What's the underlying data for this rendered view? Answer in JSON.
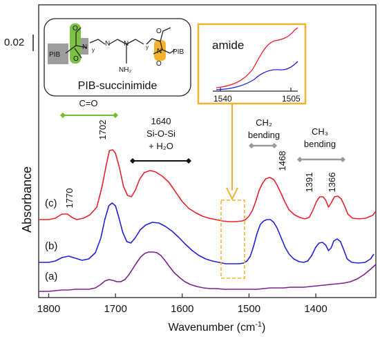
{
  "chart_data": {
    "type": "line",
    "xlabel": "Wavenumber (cm",
    "xlabel_sup": "-1",
    "xlabel_tail": ")",
    "ylabel": "Absorbance",
    "scale_bar": "0.02",
    "x_reversed": true,
    "xlim": [
      1815,
      1310
    ],
    "x_ticks": [
      1800,
      1700,
      1600,
      1500,
      1400
    ],
    "grid": false,
    "series": [
      {
        "name": "(c)",
        "color": "#e8202a",
        "points": [
          [
            1815,
            318
          ],
          [
            1800,
            318
          ],
          [
            1790,
            316
          ],
          [
            1780,
            310
          ],
          [
            1772,
            310
          ],
          [
            1765,
            315
          ],
          [
            1758,
            318
          ],
          [
            1748,
            316
          ],
          [
            1738,
            311
          ],
          [
            1728,
            300
          ],
          [
            1720,
            270
          ],
          [
            1714,
            240
          ],
          [
            1709,
            218
          ],
          [
            1704,
            217
          ],
          [
            1700,
            222
          ],
          [
            1694,
            243
          ],
          [
            1688,
            270
          ],
          [
            1682,
            283
          ],
          [
            1676,
            285
          ],
          [
            1670,
            275
          ],
          [
            1664,
            260
          ],
          [
            1657,
            250
          ],
          [
            1648,
            247
          ],
          [
            1640,
            249
          ],
          [
            1630,
            255
          ],
          [
            1620,
            264
          ],
          [
            1610,
            278
          ],
          [
            1600,
            292
          ],
          [
            1590,
            302
          ],
          [
            1580,
            308
          ],
          [
            1570,
            313
          ],
          [
            1560,
            316
          ],
          [
            1550,
            318
          ],
          [
            1540,
            320
          ],
          [
            1530,
            321
          ],
          [
            1520,
            321
          ],
          [
            1510,
            320
          ],
          [
            1505,
            318
          ],
          [
            1500,
            313
          ],
          [
            1495,
            305
          ],
          [
            1490,
            292
          ],
          [
            1485,
            276
          ],
          [
            1480,
            266
          ],
          [
            1475,
            259
          ],
          [
            1469,
            257
          ],
          [
            1463,
            260
          ],
          [
            1458,
            268
          ],
          [
            1452,
            280
          ],
          [
            1446,
            293
          ],
          [
            1440,
            304
          ],
          [
            1432,
            311
          ],
          [
            1424,
            315
          ],
          [
            1416,
            317
          ],
          [
            1410,
            315
          ],
          [
            1405,
            306
          ],
          [
            1399,
            292
          ],
          [
            1394,
            285
          ],
          [
            1389,
            285
          ],
          [
            1385,
            290
          ],
          [
            1381,
            300
          ],
          [
            1377,
            294
          ],
          [
            1372,
            285
          ],
          [
            1367,
            284
          ],
          [
            1362,
            288
          ],
          [
            1357,
            298
          ],
          [
            1352,
            310
          ],
          [
            1345,
            316
          ],
          [
            1335,
            317
          ],
          [
            1325,
            316
          ],
          [
            1315,
            312
          ],
          [
            1310,
            306
          ]
        ]
      },
      {
        "name": "(b)",
        "color": "#1f1fd8",
        "points": [
          [
            1815,
            380
          ],
          [
            1800,
            380
          ],
          [
            1790,
            378
          ],
          [
            1780,
            373
          ],
          [
            1770,
            371
          ],
          [
            1760,
            374
          ],
          [
            1750,
            377
          ],
          [
            1740,
            375
          ],
          [
            1730,
            366
          ],
          [
            1722,
            345
          ],
          [
            1716,
            318
          ],
          [
            1710,
            298
          ],
          [
            1705,
            294
          ],
          [
            1700,
            298
          ],
          [
            1695,
            315
          ],
          [
            1689,
            337
          ],
          [
            1683,
            350
          ],
          [
            1677,
            352
          ],
          [
            1670,
            344
          ],
          [
            1663,
            333
          ],
          [
            1655,
            326
          ],
          [
            1645,
            322
          ],
          [
            1635,
            323
          ],
          [
            1625,
            328
          ],
          [
            1615,
            335
          ],
          [
            1605,
            344
          ],
          [
            1595,
            354
          ],
          [
            1585,
            363
          ],
          [
            1575,
            370
          ],
          [
            1565,
            375
          ],
          [
            1555,
            378
          ],
          [
            1545,
            380
          ],
          [
            1535,
            382
          ],
          [
            1525,
            382
          ],
          [
            1515,
            382
          ],
          [
            1508,
            381
          ],
          [
            1503,
            378
          ],
          [
            1498,
            371
          ],
          [
            1493,
            356
          ],
          [
            1488,
            338
          ],
          [
            1483,
            325
          ],
          [
            1478,
            320
          ],
          [
            1473,
            318
          ],
          [
            1468,
            318
          ],
          [
            1463,
            322
          ],
          [
            1458,
            330
          ],
          [
            1452,
            344
          ],
          [
            1446,
            358
          ],
          [
            1440,
            368
          ],
          [
            1433,
            375
          ],
          [
            1425,
            379
          ],
          [
            1418,
            380
          ],
          [
            1412,
            378
          ],
          [
            1406,
            370
          ],
          [
            1400,
            358
          ],
          [
            1395,
            352
          ],
          [
            1390,
            351
          ],
          [
            1385,
            355
          ],
          [
            1381,
            363
          ],
          [
            1377,
            359
          ],
          [
            1373,
            349
          ],
          [
            1368,
            346
          ],
          [
            1363,
            350
          ],
          [
            1358,
            362
          ],
          [
            1353,
            375
          ],
          [
            1346,
            380
          ],
          [
            1336,
            381
          ],
          [
            1326,
            380
          ],
          [
            1318,
            375
          ],
          [
            1313,
            368
          ]
        ]
      },
      {
        "name": "(a)",
        "color": "#7a1f8c",
        "points": [
          [
            1815,
            422
          ],
          [
            1800,
            422
          ],
          [
            1790,
            421
          ],
          [
            1780,
            420
          ],
          [
            1770,
            420
          ],
          [
            1760,
            419
          ],
          [
            1750,
            419
          ],
          [
            1740,
            419
          ],
          [
            1730,
            417
          ],
          [
            1722,
            412
          ],
          [
            1716,
            407
          ],
          [
            1710,
            405
          ],
          [
            1704,
            406
          ],
          [
            1698,
            408
          ],
          [
            1692,
            408
          ],
          [
            1686,
            405
          ],
          [
            1680,
            398
          ],
          [
            1674,
            389
          ],
          [
            1668,
            380
          ],
          [
            1662,
            372
          ],
          [
            1656,
            367
          ],
          [
            1650,
            365
          ],
          [
            1644,
            365
          ],
          [
            1638,
            366
          ],
          [
            1632,
            370
          ],
          [
            1626,
            377
          ],
          [
            1620,
            385
          ],
          [
            1612,
            395
          ],
          [
            1604,
            402
          ],
          [
            1596,
            408
          ],
          [
            1588,
            412
          ],
          [
            1578,
            415
          ],
          [
            1568,
            417
          ],
          [
            1558,
            418
          ],
          [
            1548,
            418
          ],
          [
            1538,
            419
          ],
          [
            1528,
            419
          ],
          [
            1518,
            419
          ],
          [
            1508,
            419
          ],
          [
            1498,
            419
          ],
          [
            1488,
            419
          ],
          [
            1478,
            418
          ],
          [
            1468,
            417
          ],
          [
            1458,
            417
          ],
          [
            1448,
            417
          ],
          [
            1438,
            416
          ],
          [
            1428,
            416
          ],
          [
            1418,
            416
          ],
          [
            1408,
            415
          ],
          [
            1398,
            414
          ],
          [
            1388,
            413
          ],
          [
            1378,
            412
          ],
          [
            1368,
            411
          ],
          [
            1358,
            410
          ],
          [
            1348,
            408
          ],
          [
            1338,
            404
          ],
          [
            1328,
            398
          ],
          [
            1318,
            390
          ],
          [
            1310,
            383
          ]
        ]
      }
    ],
    "annotations": [
      {
        "text": "1770"
      },
      {
        "text": "1702"
      },
      {
        "text": "C=O",
        "color": "#6fbf2a"
      },
      {
        "lines": [
          "1640",
          "Si-O-Si",
          "+ H₂O"
        ],
        "color": "#111111"
      },
      {
        "lines": [
          "CH₂",
          "bending"
        ],
        "color": "#999999"
      },
      {
        "lines": [
          "CH₃",
          "bending"
        ],
        "color": "#999999"
      },
      {
        "text": "1468"
      },
      {
        "text": "1391"
      },
      {
        "text": "1366"
      }
    ],
    "structure_box": {
      "caption": "PIB-succinimide",
      "labels": [
        "PIB",
        "N",
        "N",
        "N",
        "N",
        "NH₂",
        "O",
        "O",
        "O",
        "O",
        "PIB",
        "y",
        "y"
      ]
    },
    "inset": {
      "title": "amide",
      "x_ticks": [
        "1540",
        "1505"
      ],
      "box_color": "#f2b22e",
      "series_colors": [
        "#e8202a",
        "#1f1fd8"
      ]
    }
  }
}
